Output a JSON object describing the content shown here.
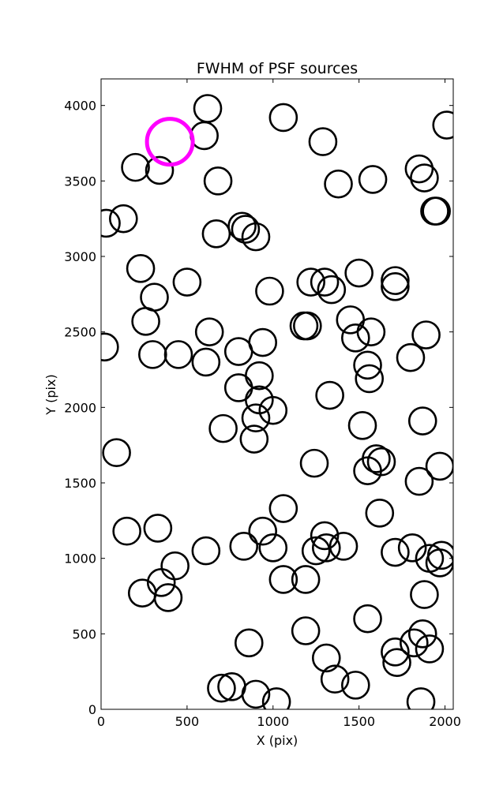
{
  "chart_data": {
    "type": "scatter",
    "title": "FWHM of PSF sources",
    "xlabel": "X (pix)",
    "ylabel": "Y (pix)",
    "xlim": [
      0,
      2048
    ],
    "ylim": [
      0,
      4176
    ],
    "xticks": [
      0,
      500,
      1000,
      1500,
      2000
    ],
    "yticks": [
      0,
      500,
      1000,
      1500,
      2000,
      2500,
      3000,
      3500,
      4000
    ],
    "grid": false,
    "marker": "open-circle",
    "marker_color": "#000000",
    "highlight_color": "#ff00ff",
    "series": [
      {
        "points": [
          [
            620,
            3980
          ],
          [
            600,
            3800
          ],
          [
            1060,
            3920
          ],
          [
            1290,
            3760
          ],
          [
            2010,
            3870
          ],
          [
            200,
            3590
          ],
          [
            340,
            3570
          ],
          [
            680,
            3500
          ],
          [
            1380,
            3480
          ],
          [
            1580,
            3510
          ],
          [
            1850,
            3580
          ],
          [
            1880,
            3520
          ],
          [
            1940,
            3300
          ],
          [
            1950,
            3300
          ],
          [
            30,
            3220
          ],
          [
            130,
            3250
          ],
          [
            670,
            3150
          ],
          [
            820,
            3200
          ],
          [
            840,
            3180
          ],
          [
            900,
            3130
          ],
          [
            230,
            2920
          ],
          [
            500,
            2830
          ],
          [
            310,
            2730
          ],
          [
            980,
            2770
          ],
          [
            1220,
            2830
          ],
          [
            1300,
            2830
          ],
          [
            1340,
            2780
          ],
          [
            1500,
            2890
          ],
          [
            1710,
            2840
          ],
          [
            1710,
            2800
          ],
          [
            20,
            2400
          ],
          [
            260,
            2570
          ],
          [
            630,
            2500
          ],
          [
            800,
            2370
          ],
          [
            940,
            2430
          ],
          [
            300,
            2350
          ],
          [
            450,
            2350
          ],
          [
            610,
            2300
          ],
          [
            1180,
            2540
          ],
          [
            1200,
            2540
          ],
          [
            1450,
            2580
          ],
          [
            1480,
            2460
          ],
          [
            1570,
            2500
          ],
          [
            1890,
            2480
          ],
          [
            1800,
            2330
          ],
          [
            920,
            2210
          ],
          [
            800,
            2130
          ],
          [
            920,
            2050
          ],
          [
            1000,
            1980
          ],
          [
            900,
            1930
          ],
          [
            1330,
            2080
          ],
          [
            1550,
            2280
          ],
          [
            1560,
            2190
          ],
          [
            710,
            1860
          ],
          [
            890,
            1790
          ],
          [
            1520,
            1880
          ],
          [
            1870,
            1910
          ],
          [
            90,
            1700
          ],
          [
            1240,
            1630
          ],
          [
            1600,
            1660
          ],
          [
            1630,
            1640
          ],
          [
            1550,
            1580
          ],
          [
            1850,
            1510
          ],
          [
            1970,
            1610
          ],
          [
            150,
            1180
          ],
          [
            330,
            1200
          ],
          [
            610,
            1050
          ],
          [
            830,
            1080
          ],
          [
            940,
            1180
          ],
          [
            1000,
            1070
          ],
          [
            1060,
            1330
          ],
          [
            1620,
            1300
          ],
          [
            1250,
            1050
          ],
          [
            1300,
            1150
          ],
          [
            1310,
            1070
          ],
          [
            1410,
            1080
          ],
          [
            1710,
            1040
          ],
          [
            1810,
            1070
          ],
          [
            1910,
            1000
          ],
          [
            1980,
            1020
          ],
          [
            1970,
            970
          ],
          [
            240,
            770
          ],
          [
            350,
            840
          ],
          [
            390,
            740
          ],
          [
            430,
            950
          ],
          [
            1060,
            860
          ],
          [
            1190,
            860
          ],
          [
            1190,
            520
          ],
          [
            1310,
            340
          ],
          [
            1360,
            200
          ],
          [
            1480,
            160
          ],
          [
            1550,
            600
          ],
          [
            1880,
            760
          ],
          [
            700,
            140
          ],
          [
            760,
            150
          ],
          [
            860,
            440
          ],
          [
            900,
            100
          ],
          [
            1020,
            50
          ],
          [
            1710,
            380
          ],
          [
            1720,
            310
          ],
          [
            1820,
            440
          ],
          [
            1870,
            500
          ],
          [
            1910,
            400
          ],
          [
            1860,
            50
          ]
        ]
      },
      {
        "points": [
          [
            400,
            3760
          ]
        ]
      }
    ]
  }
}
